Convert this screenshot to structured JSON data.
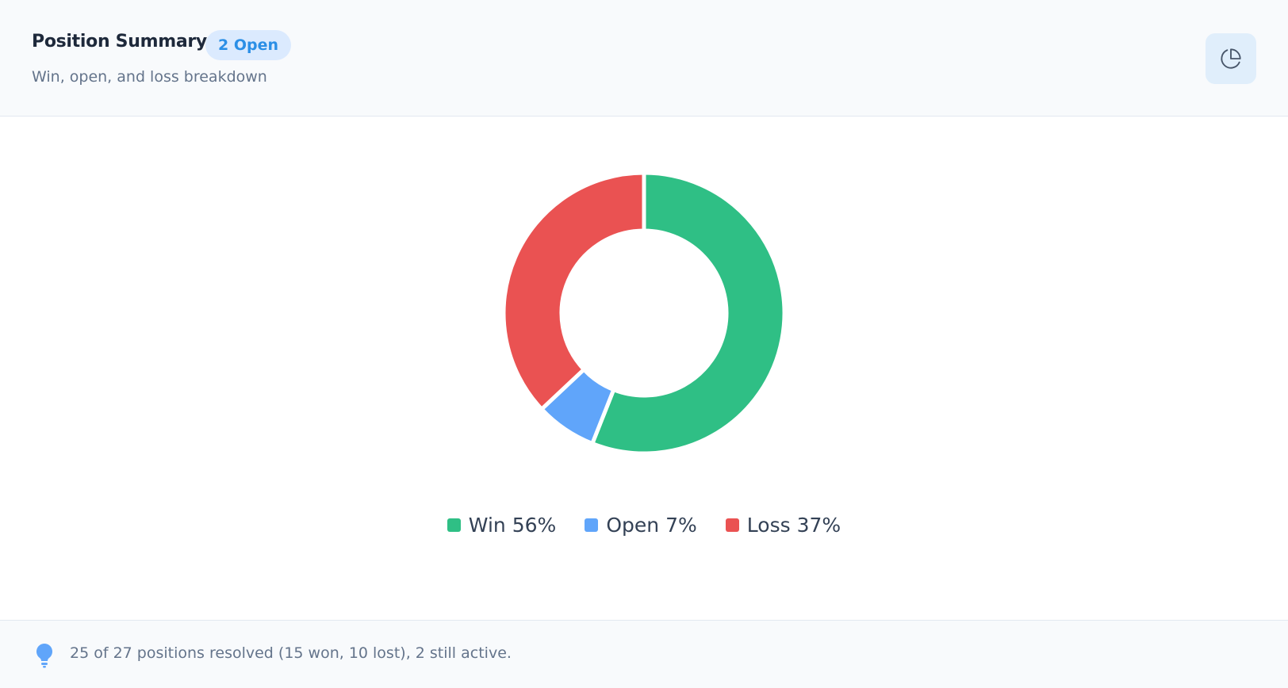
{
  "header": {
    "title": "Position Summary",
    "badge": "2 Open",
    "subtitle": "Win, open, and loss breakdown"
  },
  "chart_data": {
    "type": "pie",
    "donut": true,
    "categories": [
      "Win",
      "Open",
      "Loss"
    ],
    "values": [
      56,
      7,
      37
    ],
    "value_labels": [
      "56%",
      "7%",
      "37%"
    ],
    "colors": [
      "#2fbf85",
      "#60a5fa",
      "#ea5252"
    ]
  },
  "footer": {
    "note": "25 of 27 positions resolved (15 won, 10 lost), 2 still active."
  }
}
